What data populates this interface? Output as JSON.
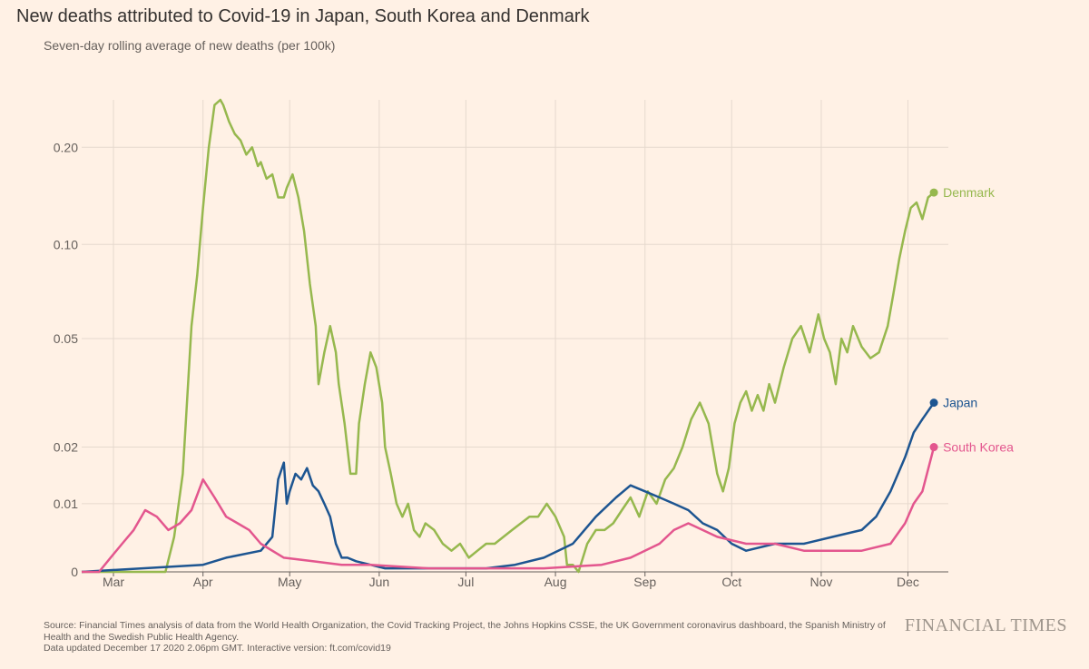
{
  "title": "New deaths attributed to Covid-19 in Japan, South Korea and Denmark",
  "subtitle": "Seven-day rolling average of new deaths (per 100k)",
  "footer": {
    "source": "Source: Financial Times analysis of data from the World Health Organization, the Covid Tracking Project, the Johns Hopkins CSSE, the UK Government coronavirus dashboard, the Spanish Ministry of Health and the Swedish Public Health Agency.",
    "updated": "Data updated December 17 2020 2.06pm GMT. Interactive version: ft.com/covid19"
  },
  "brand": "FINANCIAL TIMES",
  "chart_data": {
    "type": "line",
    "x_unit": "day-of-year 2020",
    "xlim": [
      50,
      350
    ],
    "y_scale": "symlog",
    "ylim": [
      0,
      0.28
    ],
    "y_ticks": [
      0,
      0.01,
      0.02,
      0.05,
      0.1,
      0.2
    ],
    "y_tick_labels": [
      "0",
      "0.01",
      "0.02",
      "0.05",
      "0.10",
      "0.20"
    ],
    "x_ticks": [
      {
        "label": "Mar",
        "day": 61
      },
      {
        "label": "Apr",
        "day": 92
      },
      {
        "label": "May",
        "day": 122
      },
      {
        "label": "Jun",
        "day": 153
      },
      {
        "label": "Jul",
        "day": 183
      },
      {
        "label": "Aug",
        "day": 214
      },
      {
        "label": "Sep",
        "day": 245
      },
      {
        "label": "Oct",
        "day": 275
      },
      {
        "label": "Nov",
        "day": 306
      },
      {
        "label": "Dec",
        "day": 336
      }
    ],
    "grid": true,
    "legend": "end-of-line labels",
    "series": [
      {
        "name": "Denmark",
        "color": "#96b84e",
        "x": [
          50,
          79,
          82,
          85,
          88,
          90,
          92,
          94,
          96,
          98,
          99,
          101,
          103,
          105,
          107,
          109,
          111,
          112,
          114,
          116,
          118,
          120,
          121,
          123,
          125,
          127,
          129,
          131,
          132,
          134,
          136,
          138,
          139,
          141,
          143,
          145,
          146,
          148,
          150,
          152,
          154,
          155,
          157,
          159,
          161,
          163,
          165,
          167,
          169,
          172,
          175,
          178,
          181,
          184,
          187,
          190,
          193,
          196,
          199,
          202,
          205,
          208,
          211,
          214,
          217,
          218,
          220,
          222,
          225,
          228,
          231,
          234,
          237,
          240,
          243,
          246,
          249,
          252,
          255,
          258,
          261,
          264,
          267,
          270,
          272,
          274,
          276,
          278,
          280,
          282,
          284,
          286,
          288,
          290,
          293,
          296,
          299,
          302,
          305,
          307,
          309,
          311,
          313,
          315,
          317,
          320,
          323,
          326,
          329,
          331,
          333,
          335,
          337,
          339,
          341,
          343,
          345
        ],
        "y": [
          0,
          0,
          0.005,
          0.015,
          0.055,
          0.08,
          0.13,
          0.2,
          0.27,
          0.28,
          0.27,
          0.24,
          0.22,
          0.21,
          0.19,
          0.2,
          0.175,
          0.18,
          0.16,
          0.165,
          0.14,
          0.14,
          0.15,
          0.165,
          0.14,
          0.11,
          0.075,
          0.055,
          0.035,
          0.045,
          0.055,
          0.045,
          0.035,
          0.025,
          0.015,
          0.015,
          0.025,
          0.035,
          0.045,
          0.04,
          0.03,
          0.02,
          0.015,
          0.01,
          0.008,
          0.01,
          0.006,
          0.005,
          0.007,
          0.006,
          0.004,
          0.003,
          0.004,
          0.002,
          0.003,
          0.004,
          0.004,
          0.005,
          0.006,
          0.007,
          0.008,
          0.008,
          0.01,
          0.008,
          0.005,
          0.001,
          0.001,
          0.0,
          0.004,
          0.006,
          0.006,
          0.007,
          0.009,
          0.011,
          0.008,
          0.012,
          0.01,
          0.014,
          0.016,
          0.02,
          0.026,
          0.03,
          0.025,
          0.015,
          0.012,
          0.016,
          0.025,
          0.03,
          0.033,
          0.028,
          0.032,
          0.028,
          0.035,
          0.03,
          0.04,
          0.05,
          0.055,
          0.045,
          0.06,
          0.05,
          0.045,
          0.035,
          0.05,
          0.045,
          0.055,
          0.047,
          0.043,
          0.045,
          0.055,
          0.07,
          0.09,
          0.11,
          0.13,
          0.135,
          0.12,
          0.14,
          0.145
        ]
      },
      {
        "name": "Japan",
        "color": "#1d5591",
        "x": [
          50,
          92,
          100,
          112,
          116,
          118,
          120,
          121,
          122,
          124,
          126,
          128,
          130,
          132,
          134,
          136,
          138,
          140,
          142,
          145,
          150,
          155,
          160,
          168,
          175,
          182,
          190,
          200,
          210,
          220,
          228,
          235,
          240,
          245,
          250,
          255,
          260,
          265,
          270,
          275,
          280,
          290,
          300,
          310,
          320,
          325,
          330,
          335,
          338,
          341,
          345
        ],
        "y": [
          0,
          0.001,
          0.002,
          0.003,
          0.005,
          0.014,
          0.017,
          0.01,
          0.012,
          0.015,
          0.014,
          0.016,
          0.013,
          0.012,
          0.01,
          0.008,
          0.004,
          0.002,
          0.002,
          0.0015,
          0.001,
          0.0005,
          0.0005,
          0.0005,
          0.0005,
          0.0005,
          0.0005,
          0.001,
          0.002,
          0.004,
          0.008,
          0.011,
          0.013,
          0.012,
          0.011,
          0.01,
          0.009,
          0.007,
          0.006,
          0.004,
          0.003,
          0.004,
          0.004,
          0.005,
          0.006,
          0.008,
          0.012,
          0.018,
          0.023,
          0.026,
          0.03
        ]
      },
      {
        "name": "South Korea",
        "color": "#e3568e",
        "x": [
          50,
          56,
          60,
          64,
          68,
          72,
          76,
          80,
          84,
          88,
          92,
          96,
          100,
          104,
          108,
          112,
          120,
          130,
          140,
          150,
          170,
          190,
          210,
          230,
          240,
          250,
          255,
          260,
          270,
          280,
          290,
          300,
          310,
          320,
          330,
          335,
          338,
          341,
          345
        ],
        "y": [
          0,
          0,
          0.002,
          0.004,
          0.006,
          0.009,
          0.008,
          0.006,
          0.007,
          0.009,
          0.014,
          0.011,
          0.008,
          0.007,
          0.006,
          0.004,
          0.002,
          0.0015,
          0.001,
          0.001,
          0.0005,
          0.0005,
          0.0005,
          0.001,
          0.002,
          0.004,
          0.006,
          0.007,
          0.005,
          0.004,
          0.004,
          0.003,
          0.003,
          0.003,
          0.004,
          0.007,
          0.01,
          0.012,
          0.02
        ]
      }
    ]
  }
}
